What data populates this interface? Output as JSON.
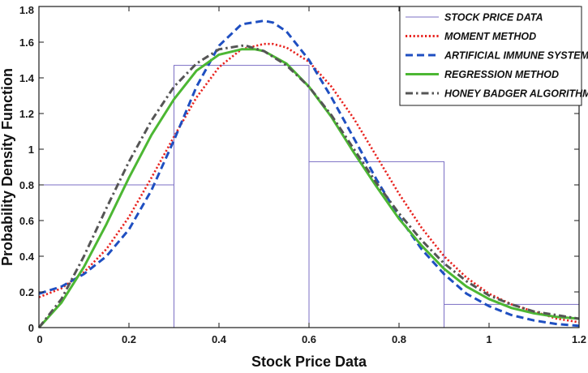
{
  "chart_data": {
    "type": "line",
    "title": "",
    "xlabel": "Stock Price Data",
    "ylabel": "Probability Density Function",
    "xlim": [
      0,
      1.2
    ],
    "ylim": [
      0,
      1.8
    ],
    "xticks": [
      "0",
      "0.2",
      "0.4",
      "0.6",
      "0.8",
      "1",
      "1.2"
    ],
    "yticks": [
      "0",
      "0.2",
      "0.4",
      "0.6",
      "0.8",
      "1",
      "1.2",
      "1.4",
      "1.6",
      "1.8"
    ],
    "grid": false,
    "legend_position": "top-right",
    "histogram": {
      "name": "STOCK PRICE DATA",
      "color": "#7b6fc4",
      "bins": [
        {
          "x0": 0.0,
          "x1": 0.3,
          "value": 0.8
        },
        {
          "x0": 0.3,
          "x1": 0.6,
          "value": 1.47
        },
        {
          "x0": 0.6,
          "x1": 0.9,
          "value": 0.93
        },
        {
          "x0": 0.9,
          "x1": 1.2,
          "value": 0.13
        }
      ]
    },
    "series": [
      {
        "name": "MOMENT METHOD",
        "color": "#e8231f",
        "style": "dotted",
        "x": [
          0.0,
          0.05,
          0.1,
          0.15,
          0.2,
          0.25,
          0.3,
          0.35,
          0.4,
          0.45,
          0.5,
          0.52,
          0.55,
          0.6,
          0.65,
          0.7,
          0.75,
          0.8,
          0.85,
          0.9,
          0.95,
          1.0,
          1.05,
          1.1,
          1.15,
          1.2
        ],
        "y": [
          0.17,
          0.22,
          0.31,
          0.44,
          0.62,
          0.84,
          1.07,
          1.29,
          1.46,
          1.56,
          1.59,
          1.59,
          1.57,
          1.49,
          1.35,
          1.17,
          0.96,
          0.75,
          0.56,
          0.4,
          0.28,
          0.19,
          0.13,
          0.09,
          0.05,
          0.03
        ]
      },
      {
        "name": "ARTIFICIAL IMMUNE SYSTEM",
        "color": "#1f4fc1",
        "style": "dashed",
        "x": [
          0.0,
          0.05,
          0.1,
          0.15,
          0.2,
          0.25,
          0.3,
          0.35,
          0.4,
          0.45,
          0.5,
          0.52,
          0.55,
          0.6,
          0.65,
          0.7,
          0.75,
          0.8,
          0.85,
          0.9,
          0.95,
          1.0,
          1.05,
          1.1,
          1.15,
          1.2
        ],
        "y": [
          0.19,
          0.23,
          0.3,
          0.4,
          0.55,
          0.77,
          1.05,
          1.35,
          1.58,
          1.7,
          1.72,
          1.71,
          1.66,
          1.5,
          1.29,
          1.06,
          0.83,
          0.62,
          0.44,
          0.3,
          0.19,
          0.12,
          0.07,
          0.04,
          0.02,
          0.01
        ]
      },
      {
        "name": "REGRESSION METHOD",
        "color": "#4cb733",
        "style": "solid",
        "x": [
          0.0,
          0.05,
          0.1,
          0.15,
          0.2,
          0.25,
          0.3,
          0.35,
          0.4,
          0.45,
          0.48,
          0.5,
          0.55,
          0.6,
          0.65,
          0.7,
          0.75,
          0.8,
          0.85,
          0.9,
          0.95,
          1.0,
          1.05,
          1.1,
          1.15,
          1.2
        ],
        "y": [
          0.0,
          0.14,
          0.34,
          0.58,
          0.84,
          1.08,
          1.28,
          1.44,
          1.53,
          1.56,
          1.56,
          1.55,
          1.48,
          1.35,
          1.18,
          0.98,
          0.79,
          0.61,
          0.46,
          0.33,
          0.23,
          0.16,
          0.11,
          0.08,
          0.06,
          0.05
        ]
      },
      {
        "name": "HONEY BADGER ALGORITHM",
        "color": "#555555",
        "style": "dashdot",
        "x": [
          0.0,
          0.05,
          0.1,
          0.15,
          0.2,
          0.25,
          0.3,
          0.35,
          0.4,
          0.45,
          0.46,
          0.5,
          0.55,
          0.6,
          0.65,
          0.7,
          0.75,
          0.8,
          0.85,
          0.9,
          0.95,
          1.0,
          1.05,
          1.1,
          1.15,
          1.2
        ],
        "y": [
          0.0,
          0.16,
          0.4,
          0.67,
          0.93,
          1.16,
          1.35,
          1.48,
          1.56,
          1.58,
          1.58,
          1.55,
          1.47,
          1.35,
          1.19,
          1.0,
          0.81,
          0.64,
          0.49,
          0.36,
          0.26,
          0.18,
          0.13,
          0.09,
          0.07,
          0.05
        ]
      }
    ]
  }
}
